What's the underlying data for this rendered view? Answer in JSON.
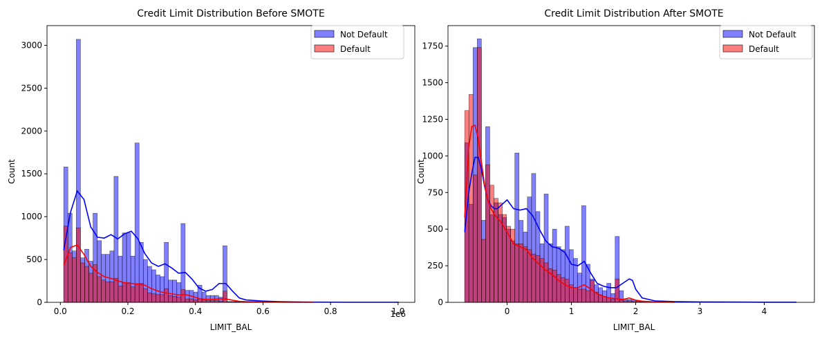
{
  "colors": {
    "not_default": "#0000ff",
    "default": "#ff0000",
    "bar_edge": "#000000"
  },
  "chart_data": [
    {
      "type": "histogram",
      "title": "Credit Limit Distribution Before SMOTE",
      "xlabel": "LIMIT_BAL",
      "ylabel": "Count",
      "x_offset_text": "1e6",
      "xlim": [
        -0.0395,
        1.0495
      ],
      "ylim": [
        0,
        3230
      ],
      "x_ticks": [
        0,
        0.2,
        0.4,
        0.6,
        0.8,
        1.0
      ],
      "x_tick_labels": [
        "0.0",
        "0.2",
        "0.4",
        "0.6",
        "0.8",
        "1.0"
      ],
      "y_ticks": [
        0,
        500,
        1000,
        1500,
        2000,
        2500,
        3000
      ],
      "y_tick_labels": [
        "0",
        "500",
        "1000",
        "1500",
        "2000",
        "2500",
        "3000"
      ],
      "bin_start": 0.01,
      "bin_width": 0.0124,
      "grid": false,
      "legend": "upper right",
      "series": [
        {
          "name": "Not Default",
          "color": "#0000ff",
          "alpha": 0.5,
          "counts": [
            1580,
            1040,
            600,
            3070,
            520,
            620,
            480,
            1040,
            720,
            560,
            560,
            600,
            1470,
            540,
            810,
            810,
            540,
            1860,
            700,
            500,
            420,
            380,
            320,
            300,
            700,
            260,
            260,
            230,
            920,
            140,
            140,
            120,
            200,
            120,
            80,
            80,
            80,
            60,
            660,
            10,
            10,
            10,
            10,
            10,
            10,
            10,
            0,
            0,
            0,
            0,
            0,
            0,
            0,
            0,
            0,
            0,
            0,
            0,
            0,
            0,
            0,
            0,
            0,
            0,
            0,
            0,
            0,
            0,
            0,
            0,
            0,
            0,
            0,
            0,
            0,
            0,
            0,
            0,
            0,
            5
          ],
          "kde_x": [
            0.01,
            0.03,
            0.05,
            0.07,
            0.09,
            0.11,
            0.13,
            0.15,
            0.17,
            0.19,
            0.21,
            0.23,
            0.25,
            0.27,
            0.29,
            0.31,
            0.33,
            0.35,
            0.37,
            0.39,
            0.41,
            0.43,
            0.45,
            0.47,
            0.49,
            0.51,
            0.53,
            0.55,
            0.6,
            0.65,
            0.7,
            0.75,
            0.8,
            0.85,
            0.9,
            0.95,
            1.0
          ],
          "kde_y": [
            610,
            1050,
            1300,
            1200,
            880,
            760,
            750,
            790,
            740,
            800,
            830,
            740,
            570,
            460,
            420,
            450,
            400,
            340,
            350,
            270,
            170,
            130,
            150,
            220,
            220,
            130,
            50,
            28,
            15,
            8,
            5,
            3,
            2,
            1,
            1,
            1,
            1
          ]
        },
        {
          "name": "Default",
          "color": "#ff0000",
          "alpha": 0.5,
          "counts": [
            890,
            580,
            520,
            870,
            460,
            420,
            340,
            440,
            300,
            260,
            240,
            240,
            280,
            190,
            230,
            230,
            180,
            210,
            220,
            160,
            110,
            100,
            90,
            90,
            160,
            80,
            70,
            60,
            150,
            40,
            40,
            30,
            40,
            30,
            20,
            20,
            20,
            15,
            130,
            5,
            5,
            5,
            5,
            5,
            5,
            5,
            0,
            0,
            0,
            0,
            3
          ],
          "kde_x": [
            0.01,
            0.03,
            0.05,
            0.07,
            0.09,
            0.11,
            0.13,
            0.15,
            0.17,
            0.19,
            0.21,
            0.23,
            0.25,
            0.27,
            0.29,
            0.31,
            0.33,
            0.35,
            0.37,
            0.39,
            0.41,
            0.43,
            0.45,
            0.47,
            0.49,
            0.51,
            0.53,
            0.55,
            0.6,
            0.65,
            0.7,
            0.75
          ],
          "kde_y": [
            430,
            640,
            670,
            560,
            420,
            350,
            300,
            280,
            250,
            230,
            220,
            215,
            200,
            160,
            130,
            110,
            100,
            85,
            90,
            70,
            45,
            35,
            35,
            40,
            40,
            25,
            12,
            8,
            4,
            2,
            1,
            1
          ]
        }
      ]
    },
    {
      "type": "histogram",
      "title": "Credit Limit Distribution After SMOTE",
      "xlabel": "LIMIT_BAL",
      "ylabel": "Count",
      "xlim": [
        -0.92,
        4.78
      ],
      "ylim": [
        0,
        1890
      ],
      "x_ticks": [
        0,
        1,
        2,
        3,
        4
      ],
      "x_tick_labels": [
        "0",
        "1",
        "2",
        "3",
        "4"
      ],
      "y_ticks": [
        0,
        250,
        500,
        750,
        1000,
        1250,
        1500,
        1750
      ],
      "y_tick_labels": [
        "0",
        "250",
        "500",
        "750",
        "1000",
        "1250",
        "1500",
        "1750"
      ],
      "bin_start": -0.66,
      "bin_width": 0.065,
      "grid": false,
      "legend": "upper right",
      "series": [
        {
          "name": "Not Default",
          "color": "#0000ff",
          "alpha": 0.5,
          "counts": [
            1090,
            670,
            1740,
            1800,
            560,
            1200,
            600,
            680,
            600,
            580,
            500,
            420,
            1020,
            560,
            480,
            720,
            880,
            620,
            400,
            740,
            400,
            500,
            380,
            360,
            520,
            360,
            300,
            200,
            660,
            260,
            160,
            120,
            100,
            80,
            130,
            60,
            450,
            80,
            20,
            20,
            15,
            10,
            5,
            5,
            5,
            5,
            5,
            0,
            0,
            0,
            0,
            0,
            0,
            0,
            0,
            0,
            0,
            0,
            0,
            0,
            0,
            0,
            0,
            0,
            0,
            0,
            0,
            0,
            0,
            0,
            0,
            3
          ],
          "kde_x": [
            -0.66,
            -0.6,
            -0.55,
            -0.5,
            -0.45,
            -0.4,
            -0.35,
            -0.3,
            -0.25,
            -0.2,
            -0.15,
            -0.1,
            -0.05,
            0.0,
            0.1,
            0.2,
            0.3,
            0.4,
            0.5,
            0.6,
            0.7,
            0.8,
            0.9,
            1.0,
            1.1,
            1.2,
            1.3,
            1.4,
            1.5,
            1.6,
            1.7,
            1.8,
            1.9,
            1.95,
            2.0,
            2.1,
            2.3,
            2.6,
            3.0,
            3.5,
            4.0,
            4.5
          ],
          "kde_y": [
            480,
            740,
            880,
            990,
            990,
            910,
            790,
            700,
            660,
            640,
            640,
            660,
            680,
            700,
            640,
            630,
            640,
            590,
            500,
            420,
            380,
            370,
            340,
            260,
            250,
            280,
            200,
            130,
            110,
            100,
            100,
            130,
            160,
            150,
            90,
            30,
            10,
            5,
            3,
            2,
            1,
            1
          ]
        },
        {
          "name": "Default",
          "color": "#ff0000",
          "alpha": 0.5,
          "counts": [
            1310,
            1420,
            870,
            1740,
            430,
            940,
            800,
            710,
            680,
            600,
            520,
            500,
            400,
            400,
            380,
            360,
            330,
            320,
            300,
            270,
            230,
            220,
            190,
            170,
            160,
            120,
            100,
            90,
            90,
            80,
            150,
            70,
            50,
            40,
            30,
            20,
            160,
            15,
            10,
            10,
            5,
            5,
            5,
            5
          ],
          "kde_x": [
            -0.66,
            -0.6,
            -0.55,
            -0.5,
            -0.45,
            -0.4,
            -0.35,
            -0.3,
            -0.25,
            -0.2,
            -0.1,
            0.0,
            0.1,
            0.2,
            0.3,
            0.4,
            0.5,
            0.6,
            0.7,
            0.8,
            0.9,
            1.0,
            1.1,
            1.2,
            1.3,
            1.4,
            1.5,
            1.6,
            1.7,
            1.8,
            1.9,
            2.0,
            2.1,
            2.3,
            2.6
          ],
          "kde_y": [
            580,
            1050,
            1200,
            1210,
            1120,
            960,
            800,
            700,
            640,
            600,
            550,
            480,
            400,
            380,
            360,
            300,
            260,
            220,
            190,
            150,
            120,
            100,
            100,
            120,
            90,
            60,
            40,
            30,
            25,
            20,
            30,
            15,
            8,
            3,
            1
          ]
        }
      ]
    }
  ]
}
